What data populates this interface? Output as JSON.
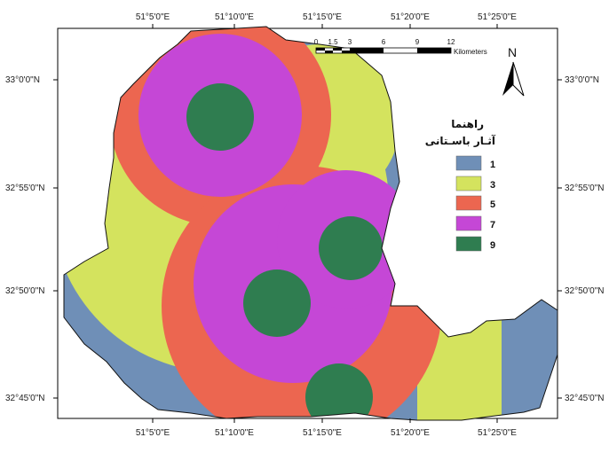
{
  "colors": {
    "c1": "#6f8fb7",
    "c3": "#d4e35e",
    "c5": "#ec6650",
    "c7": "#c547d6",
    "c9": "#2f7d50"
  },
  "axes": {
    "top": [
      "51°5'0\"E",
      "51°10'0\"E",
      "51°15'0\"E",
      "51°20'0\"E",
      "51°25'0\"E"
    ],
    "bottom": [
      "51°5'0\"E",
      "51°10'0\"E",
      "51°15'0\"E",
      "51°20'0\"E",
      "51°25'0\"E"
    ],
    "left": [
      "33°0'0\"N",
      "32°55'0\"N",
      "32°50'0\"N",
      "32°45'0\"N"
    ],
    "right": [
      "33°0'0\"N",
      "32°55'0\"N",
      "32°50'0\"N",
      "32°45'0\"N"
    ]
  },
  "legend": {
    "title_line1": "راهنما",
    "title_line2": "آثـار باسـتانی",
    "items": [
      {
        "label": "1",
        "color": "#6f8fb7"
      },
      {
        "label": "3",
        "color": "#d4e35e"
      },
      {
        "label": "5",
        "color": "#ec6650"
      },
      {
        "label": "7",
        "color": "#c547d6"
      },
      {
        "label": "9",
        "color": "#2f7d50"
      }
    ]
  },
  "scale_bar": {
    "ticks": [
      "0",
      "1.5",
      "3",
      "6",
      "9",
      "12"
    ],
    "unit": "Kilometers"
  },
  "north_arrow": {
    "letter": "N",
    "icon": "north-arrow-icon"
  }
}
